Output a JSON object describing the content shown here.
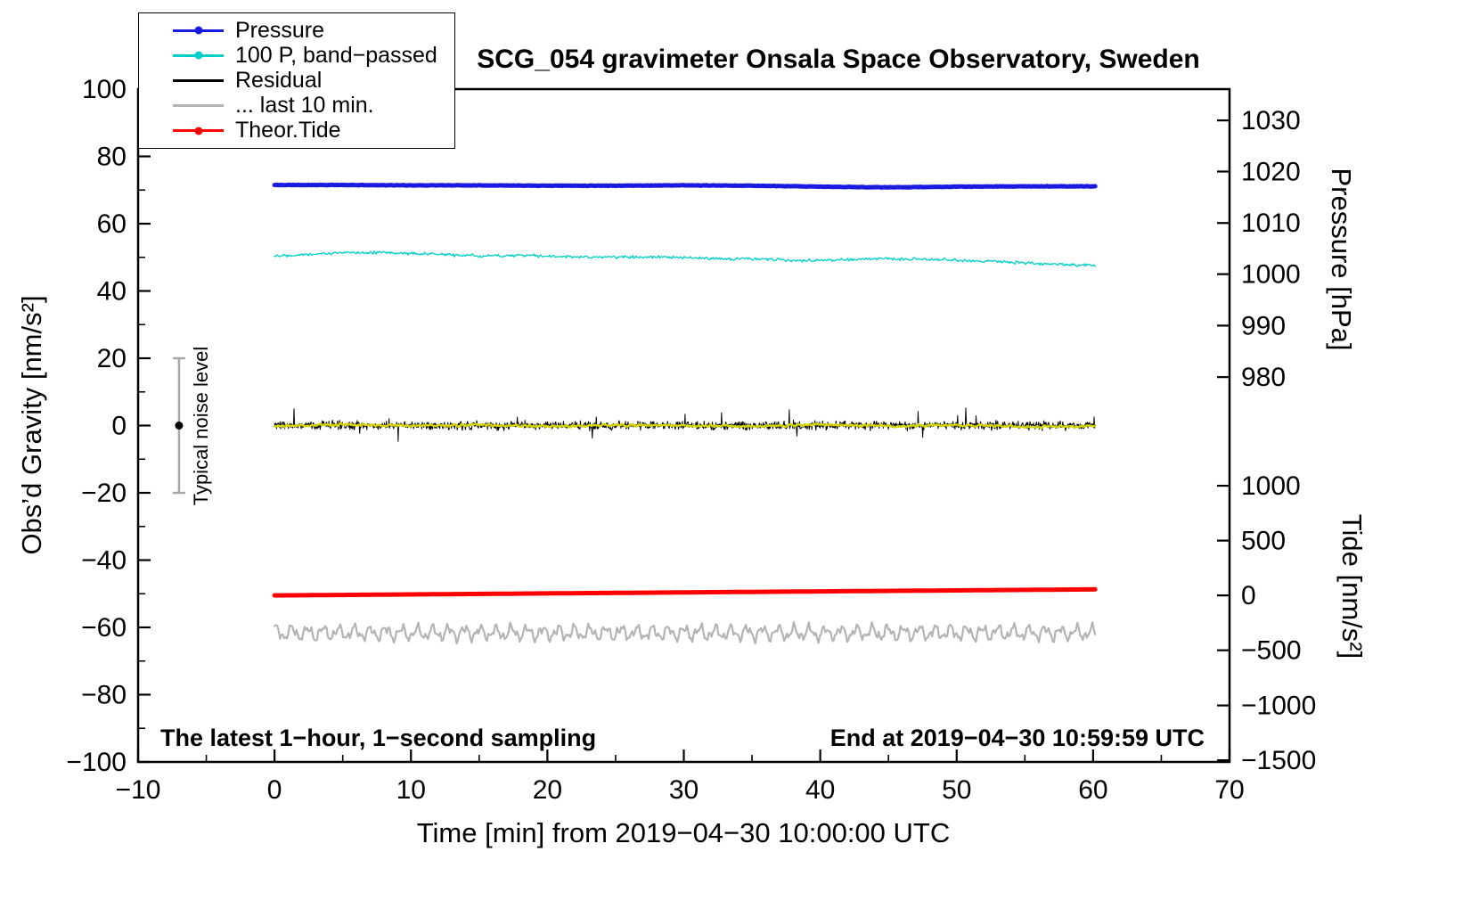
{
  "chart_data": {
    "type": "line",
    "title": "SCG_054 gravimeter Onsala Space Observatory, Sweden",
    "annotations": {
      "sampling_note": "The latest 1−hour, 1−second sampling",
      "end_note": "End at 2019−04−30 10:59:59 UTC"
    },
    "x_axis": {
      "label": "Time [min] from 2019−04−30 10:00:00 UTC",
      "min": -10,
      "max": 70,
      "major_ticks": [
        -10,
        0,
        10,
        20,
        30,
        40,
        50,
        60,
        70
      ],
      "minor_step": 5
    },
    "y_left": {
      "label": "Obs’d Gravity [nm/s²]",
      "min": -100,
      "max": 100,
      "major_ticks": [
        -100,
        -80,
        -60,
        -40,
        -20,
        0,
        20,
        40,
        60,
        80,
        100
      ],
      "minor_step": 10
    },
    "y_right_pressure": {
      "label": "Pressure [hPa]",
      "ticks": [
        {
          "value": 1030,
          "lu": 90.7
        },
        {
          "value": 1020,
          "lu": 75.5
        },
        {
          "value": 1010,
          "lu": 60.2
        },
        {
          "value": 1000,
          "lu": 45.0
        },
        {
          "value": 990,
          "lu": 29.7
        },
        {
          "value": 980,
          "lu": 14.4
        }
      ]
    },
    "y_right_tide": {
      "label": "Tide [nm/s²]",
      "ticks": [
        {
          "value": 1000,
          "lu": -17.9
        },
        {
          "value": 500,
          "lu": -34.2
        },
        {
          "value": 0,
          "lu": -50.5
        },
        {
          "value": -500,
          "lu": -66.8
        },
        {
          "value": -1000,
          "lu": -83.2
        },
        {
          "value": -1500,
          "lu": -99.5
        }
      ]
    },
    "noise_marker": {
      "x": -7,
      "y": 0,
      "error": 20,
      "label": "Typical noise level",
      "bar_color": "#a6a6a6",
      "dot_color": "#000000"
    },
    "legend": {
      "items": [
        {
          "label": "Pressure",
          "color": "#1a1ae0",
          "dot": true
        },
        {
          "label": "100 P, band−passed",
          "color": "#00cfc8",
          "dot": true
        },
        {
          "label": "Residual",
          "color": "#000000",
          "dot": false
        },
        {
          "label": "... last 10 min.",
          "color": "#b4b4b4",
          "dot": false
        },
        {
          "label": "Theor.Tide",
          "color": "#ff0000",
          "dot": true
        }
      ]
    },
    "series": [
      {
        "name": "Pressure",
        "color": "#1a1ae0",
        "width": 5,
        "kind": "noisy",
        "points": 700,
        "noise": 0.09,
        "seed": 11,
        "anchors_x": [
          0,
          5,
          10,
          15,
          20,
          25,
          30,
          35,
          40,
          45,
          50,
          55,
          60
        ],
        "anchors_y": [
          71.5,
          71.5,
          71.4,
          71.4,
          71.3,
          71.3,
          71.4,
          71.3,
          71.0,
          70.8,
          71.0,
          71.1,
          71.1
        ],
        "approx_value_hpa": 1017
      },
      {
        "name": "100 P, band−passed",
        "color": "#00cfc8",
        "width": 1.3,
        "kind": "noisy",
        "points": 800,
        "noise": 0.55,
        "seed": 22,
        "anchors_x": [
          0,
          3,
          6,
          9,
          12,
          15,
          18,
          21,
          24,
          27,
          30,
          33,
          36,
          39,
          42,
          45,
          48,
          51,
          54,
          57,
          60
        ],
        "anchors_y": [
          50.5,
          51.0,
          51.5,
          51.3,
          50.9,
          50.4,
          50.6,
          50.2,
          50.0,
          50.2,
          49.8,
          49.6,
          49.4,
          49.1,
          49.3,
          49.6,
          49.4,
          49.0,
          48.6,
          47.9,
          47.6
        ]
      },
      {
        "name": "Residual",
        "color": "#000000",
        "width": 1,
        "kind": "residual",
        "points": 1600,
        "noise": 1.9,
        "spike": 4.5,
        "seed": 33,
        "base": 0
      },
      {
        "name": "Residual smoothed",
        "color": "#d2d200",
        "width": 2.5,
        "kind": "noisy",
        "points": 400,
        "noise": 0.45,
        "seed": 44,
        "anchors_x": [
          0,
          5,
          10,
          15,
          20,
          25,
          30,
          35,
          40,
          45,
          50,
          55,
          60
        ],
        "anchors_y": [
          -0.2,
          0.3,
          -0.1,
          0.2,
          -0.3,
          0.1,
          0.0,
          -0.2,
          0.3,
          -0.1,
          0.1,
          -0.3,
          -0.2
        ]
      },
      {
        "name": "Theor.Tide",
        "color": "#ff0000",
        "width": 5,
        "kind": "noisy",
        "points": 200,
        "noise": 0,
        "seed": 55,
        "anchors_x": [
          0,
          10,
          20,
          30,
          40,
          50,
          60
        ],
        "anchors_y": [
          -50.5,
          -50.2,
          -49.9,
          -49.6,
          -49.3,
          -49.0,
          -48.7
        ]
      },
      {
        "name": "... last 10 min.",
        "color": "#b4b4b4",
        "width": 2.2,
        "kind": "wave",
        "points": 600,
        "seed": 66,
        "base": -61.6,
        "noise": 0.25,
        "components": [
          {
            "amp": 1.6,
            "period": 1.15
          },
          {
            "amp": 1.0,
            "period": 0.52
          },
          {
            "amp": 0.6,
            "period": 0.27
          }
        ]
      }
    ]
  }
}
